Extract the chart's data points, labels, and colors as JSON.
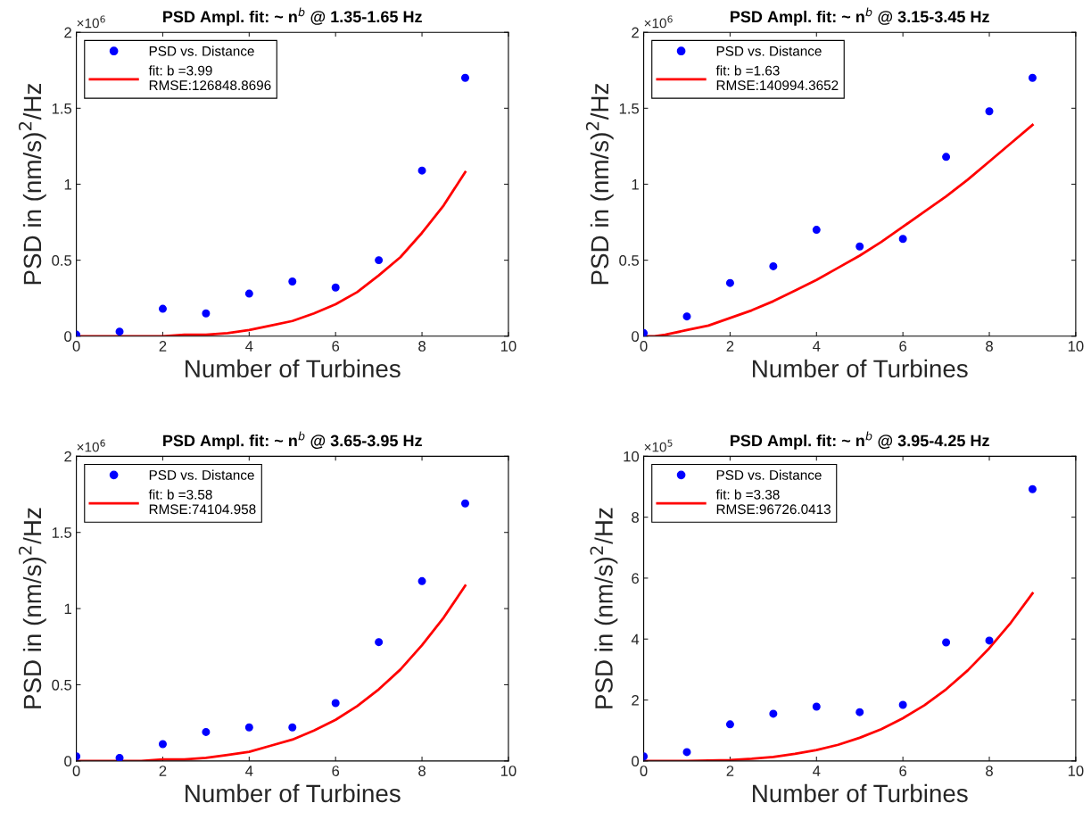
{
  "chart_data": [
    {
      "type": "scatter",
      "title": "PSD Ampl. fit: ~ n$^{b}$ @ 1.35-1.65 Hz",
      "xlabel": "Number of Turbines",
      "ylabel": "PSD in (nm/s)$^{2}$/Hz",
      "annotations": [
        "×10$^{6}$"
      ],
      "x": [
        0,
        1,
        2,
        3,
        4,
        5,
        6,
        7,
        8,
        9
      ],
      "xlim": [
        0,
        10
      ],
      "xticks": [
        0,
        2,
        4,
        6,
        8,
        10
      ],
      "ylim": [
        0,
        2
      ],
      "yticks": [
        0,
        0.5,
        1,
        1.5,
        2
      ],
      "legend": "top left",
      "series": [
        {
          "name": "PSD vs. Distance",
          "marker": "circle",
          "color": "#0000ff",
          "values": [
            0.01,
            0.03,
            0.18,
            0.15,
            0.28,
            0.36,
            0.32,
            0.5,
            1.09,
            1.7
          ]
        },
        {
          "name": "fit: b =3.99\nRMSE:126848.8696",
          "type": "line",
          "marker": "none",
          "line_style": "solid",
          "color": "#ff0000",
          "x": [
            0,
            0.5,
            1,
            1.5,
            2,
            2.5,
            3,
            3.5,
            4,
            4.5,
            5,
            5.5,
            6,
            6.5,
            7,
            7.5,
            8,
            8.5,
            9
          ],
          "values": [
            0,
            0,
            0,
            0,
            0,
            0.01,
            0.01,
            0.02,
            0.04,
            0.07,
            0.1,
            0.15,
            0.21,
            0.29,
            0.4,
            0.52,
            0.68,
            0.86,
            1.08
          ]
        }
      ]
    },
    {
      "type": "scatter",
      "title": "PSD Ampl. fit: ~ n$^{b}$ @ 3.15-3.45 Hz",
      "xlabel": "Number of Turbines",
      "ylabel": "PSD in (nm/s)$^{2}$/Hz",
      "annotations": [
        "×10$^{6}$"
      ],
      "x": [
        0,
        1,
        2,
        3,
        4,
        5,
        6,
        7,
        8,
        9
      ],
      "xlim": [
        0,
        10
      ],
      "xticks": [
        0,
        2,
        4,
        6,
        8,
        10
      ],
      "ylim": [
        0,
        2
      ],
      "yticks": [
        0,
        0.5,
        1,
        1.5,
        2
      ],
      "legend": "top left",
      "series": [
        {
          "name": "PSD vs. Distance",
          "marker": "circle",
          "color": "#0000ff",
          "values": [
            0.02,
            0.13,
            0.35,
            0.46,
            0.7,
            0.59,
            0.64,
            1.18,
            1.48,
            1.7
          ]
        },
        {
          "name": "fit: b =1.63\nRMSE:140994.3652",
          "type": "line",
          "marker": "none",
          "line_style": "solid",
          "color": "#ff0000",
          "x": [
            0,
            0.25,
            0.5,
            1,
            1.5,
            2,
            2.5,
            3,
            3.5,
            4,
            4.5,
            5,
            5.5,
            6,
            6.5,
            7,
            7.5,
            8,
            8.5,
            9
          ],
          "values": [
            0,
            0,
            0.01,
            0.04,
            0.07,
            0.12,
            0.17,
            0.23,
            0.3,
            0.37,
            0.45,
            0.53,
            0.62,
            0.72,
            0.82,
            0.92,
            1.03,
            1.15,
            1.27,
            1.39
          ]
        }
      ]
    },
    {
      "type": "scatter",
      "title": "PSD Ampl. fit: ~ n$^{b}$ @ 3.65-3.95 Hz",
      "xlabel": "Number of Turbines",
      "ylabel": "PSD in (nm/s)$^{2}$/Hz",
      "annotations": [
        "×10$^{6}$"
      ],
      "x": [
        0,
        1,
        2,
        3,
        4,
        5,
        6,
        7,
        8,
        9
      ],
      "xlim": [
        0,
        10
      ],
      "xticks": [
        0,
        2,
        4,
        6,
        8,
        10
      ],
      "ylim": [
        0,
        2
      ],
      "yticks": [
        0,
        0.5,
        1,
        1.5,
        2
      ],
      "legend": "top left",
      "series": [
        {
          "name": "PSD vs. Distance",
          "marker": "circle",
          "color": "#0000ff",
          "values": [
            0.03,
            0.02,
            0.11,
            0.19,
            0.22,
            0.22,
            0.38,
            0.78,
            1.18,
            1.69
          ]
        },
        {
          "name": "fit: b =3.58\nRMSE:74104.958",
          "type": "line",
          "marker": "none",
          "line_style": "solid",
          "color": "#ff0000",
          "x": [
            0,
            0.5,
            1,
            1.5,
            2,
            2.5,
            3,
            3.5,
            4,
            4.5,
            5,
            5.5,
            6,
            6.5,
            7,
            7.5,
            8,
            8.5,
            9
          ],
          "values": [
            0,
            0,
            0,
            0,
            0.01,
            0.01,
            0.02,
            0.04,
            0.06,
            0.1,
            0.14,
            0.2,
            0.27,
            0.36,
            0.47,
            0.6,
            0.76,
            0.94,
            1.15
          ]
        }
      ]
    },
    {
      "type": "scatter",
      "title": "PSD Ampl. fit: ~ n$^{b}$ @ 3.95-4.25 Hz",
      "xlabel": "Number of Turbines",
      "ylabel": "PSD in (nm/s)$^{2}$/Hz",
      "annotations": [
        "×10$^{5}$"
      ],
      "x": [
        0,
        1,
        2,
        3,
        4,
        5,
        6,
        7,
        8,
        9
      ],
      "xlim": [
        0,
        10
      ],
      "xticks": [
        0,
        2,
        4,
        6,
        8,
        10
      ],
      "ylim": [
        0,
        10
      ],
      "yticks": [
        0,
        2,
        4,
        6,
        8,
        10
      ],
      "legend": "top left",
      "series": [
        {
          "name": "PSD vs. Distance",
          "marker": "circle",
          "color": "#0000ff",
          "values": [
            0.15,
            0.29,
            1.2,
            1.55,
            1.78,
            1.6,
            1.84,
            3.89,
            3.95,
            8.92
          ]
        },
        {
          "name": "fit: b =3.38\nRMSE:96726.0413",
          "type": "line",
          "marker": "none",
          "line_style": "solid",
          "color": "#ff0000",
          "x": [
            0,
            0.5,
            1,
            1.5,
            2,
            2.5,
            3,
            3.5,
            4,
            4.5,
            5,
            5.5,
            6,
            6.5,
            7,
            7.5,
            8,
            8.5,
            9
          ],
          "values": [
            0,
            0,
            0,
            0.01,
            0.03,
            0.07,
            0.13,
            0.23,
            0.36,
            0.53,
            0.76,
            1.04,
            1.4,
            1.83,
            2.35,
            2.97,
            3.7,
            4.54,
            5.5
          ]
        }
      ]
    }
  ]
}
